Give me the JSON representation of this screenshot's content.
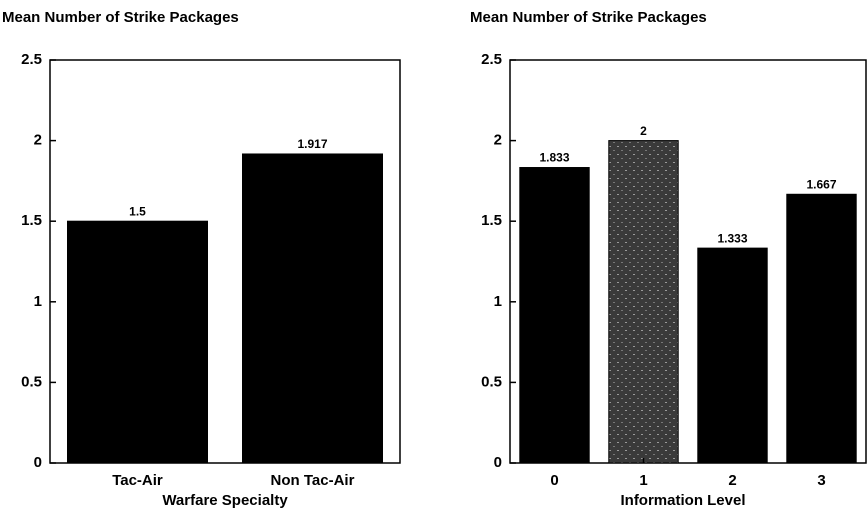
{
  "chart_data": [
    {
      "type": "bar",
      "title": "Mean Number of Strike Packages",
      "categories": [
        "Tac-Air",
        "Non Tac-Air"
      ],
      "values": [
        1.5,
        1.917
      ],
      "colors": [
        "#000000",
        "#000000"
      ],
      "xlabel": "Warfare Specialty",
      "ylim": [
        0,
        2.5
      ],
      "yticks": [
        0,
        0.5,
        1,
        1.5,
        2,
        2.5
      ]
    },
    {
      "type": "bar",
      "title": "Mean Number of Strike Packages",
      "categories": [
        "0",
        "1",
        "2",
        "3"
      ],
      "values": [
        1.833,
        2,
        1.333,
        1.667
      ],
      "colors": [
        "#000000",
        "#4a4a4a",
        "#000000",
        "#000000"
      ],
      "xlabel": "Information Level",
      "ylim": [
        0,
        2.5
      ],
      "yticks": [
        0,
        0.5,
        1,
        1.5,
        2,
        2.5
      ]
    }
  ]
}
